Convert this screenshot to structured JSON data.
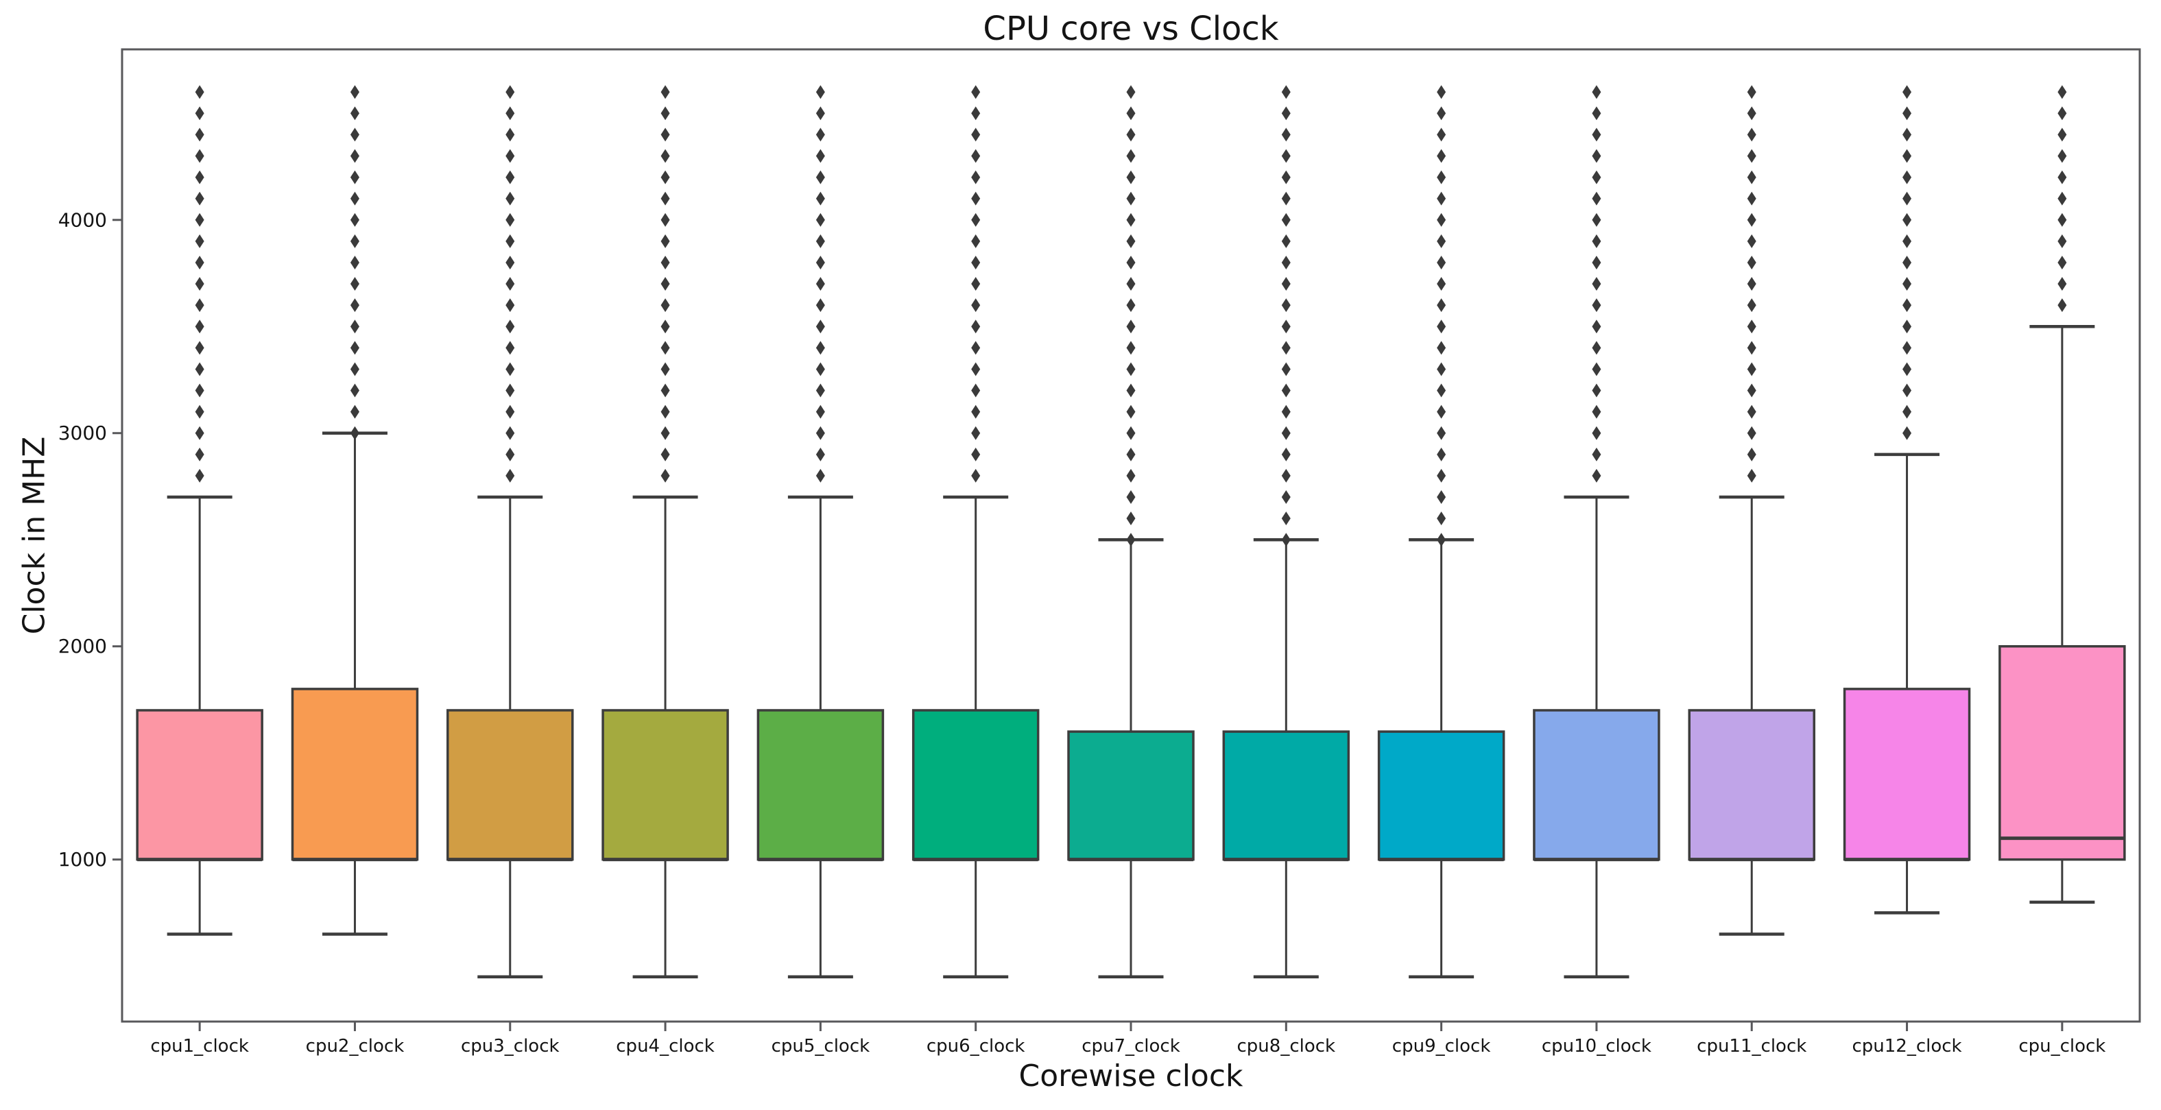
{
  "chart_data": {
    "type": "box",
    "title": "CPU core vs Clock",
    "xlabel": "Corewise clock",
    "ylabel": "Clock in MHZ",
    "categories": [
      "cpu1_clock",
      "cpu2_clock",
      "cpu3_clock",
      "cpu4_clock",
      "cpu5_clock",
      "cpu6_clock",
      "cpu7_clock",
      "cpu8_clock",
      "cpu9_clock",
      "cpu10_clock",
      "cpu11_clock",
      "cpu12_clock",
      "cpu_clock"
    ],
    "yticks": [
      1000,
      2000,
      3000,
      4000
    ],
    "ylim": [
      240,
      4800
    ],
    "grid": false,
    "legend": "none",
    "units": "MHz",
    "colors": {
      "background": "#ffffff",
      "spine": "#58585b",
      "box_line": "#3d3d3d",
      "flier": "#3a3a3a",
      "text": "#141414"
    },
    "boxes": [
      {
        "label": "cpu1_clock",
        "color": "#fc96a4",
        "whisker_low": 650,
        "q1": 1000,
        "median": 1000,
        "q3": 1700,
        "whisker_high": 2700,
        "outliers": [
          2800,
          2900,
          3000,
          3100,
          3200,
          3300,
          3400,
          3500,
          3600,
          3700,
          3800,
          3900,
          4000,
          4100,
          4200,
          4300,
          4400,
          4500,
          4600
        ]
      },
      {
        "label": "cpu2_clock",
        "color": "#f89b51",
        "whisker_low": 650,
        "q1": 1000,
        "median": 1000,
        "q3": 1800,
        "whisker_high": 3000,
        "outliers": [
          3000,
          3100,
          3200,
          3300,
          3400,
          3500,
          3600,
          3700,
          3800,
          3900,
          4000,
          4100,
          4200,
          4300,
          4400,
          4500,
          4600
        ]
      },
      {
        "label": "cpu3_clock",
        "color": "#d19d44",
        "whisker_low": 450,
        "q1": 1000,
        "median": 1000,
        "q3": 1700,
        "whisker_high": 2700,
        "outliers": [
          2800,
          2900,
          3000,
          3100,
          3200,
          3300,
          3400,
          3500,
          3600,
          3700,
          3800,
          3900,
          4000,
          4100,
          4200,
          4300,
          4400,
          4500,
          4600
        ]
      },
      {
        "label": "cpu4_clock",
        "color": "#a4aa3f",
        "whisker_low": 450,
        "q1": 1000,
        "median": 1000,
        "q3": 1700,
        "whisker_high": 2700,
        "outliers": [
          2800,
          2900,
          3000,
          3100,
          3200,
          3300,
          3400,
          3500,
          3600,
          3700,
          3800,
          3900,
          4000,
          4100,
          4200,
          4300,
          4400,
          4500,
          4600
        ]
      },
      {
        "label": "cpu5_clock",
        "color": "#5cae47",
        "whisker_low": 450,
        "q1": 1000,
        "median": 1000,
        "q3": 1700,
        "whisker_high": 2700,
        "outliers": [
          2800,
          2900,
          3000,
          3100,
          3200,
          3300,
          3400,
          3500,
          3600,
          3700,
          3800,
          3900,
          4000,
          4100,
          4200,
          4300,
          4400,
          4500,
          4600
        ]
      },
      {
        "label": "cpu6_clock",
        "color": "#00ae7d",
        "whisker_low": 450,
        "q1": 1000,
        "median": 1000,
        "q3": 1700,
        "whisker_high": 2700,
        "outliers": [
          2800,
          2900,
          3000,
          3100,
          3200,
          3300,
          3400,
          3500,
          3600,
          3700,
          3800,
          3900,
          4000,
          4100,
          4200,
          4300,
          4400,
          4500,
          4600
        ]
      },
      {
        "label": "cpu7_clock",
        "color": "#0cac90",
        "whisker_low": 450,
        "q1": 1000,
        "median": 1000,
        "q3": 1600,
        "whisker_high": 2500,
        "outliers": [
          2500,
          2600,
          2700,
          2800,
          2900,
          3000,
          3100,
          3200,
          3300,
          3400,
          3500,
          3600,
          3700,
          3800,
          3900,
          4000,
          4100,
          4200,
          4300,
          4400,
          4500,
          4600
        ]
      },
      {
        "label": "cpu8_clock",
        "color": "#00aaa6",
        "whisker_low": 450,
        "q1": 1000,
        "median": 1000,
        "q3": 1600,
        "whisker_high": 2500,
        "outliers": [
          2500,
          2600,
          2700,
          2800,
          2900,
          3000,
          3100,
          3200,
          3300,
          3400,
          3500,
          3600,
          3700,
          3800,
          3900,
          4000,
          4100,
          4200,
          4300,
          4400,
          4500,
          4600
        ]
      },
      {
        "label": "cpu9_clock",
        "color": "#00a9c8",
        "whisker_low": 450,
        "q1": 1000,
        "median": 1000,
        "q3": 1600,
        "whisker_high": 2500,
        "outliers": [
          2500,
          2600,
          2700,
          2800,
          2900,
          3000,
          3100,
          3200,
          3300,
          3400,
          3500,
          3600,
          3700,
          3800,
          3900,
          4000,
          4100,
          4200,
          4300,
          4400,
          4500,
          4600
        ]
      },
      {
        "label": "cpu10_clock",
        "color": "#86a9eb",
        "whisker_low": 450,
        "q1": 1000,
        "median": 1000,
        "q3": 1700,
        "whisker_high": 2700,
        "outliers": [
          2800,
          2900,
          3000,
          3100,
          3200,
          3300,
          3400,
          3500,
          3600,
          3700,
          3800,
          3900,
          4000,
          4100,
          4200,
          4300,
          4400,
          4500,
          4600
        ]
      },
      {
        "label": "cpu11_clock",
        "color": "#c0a4e8",
        "whisker_low": 650,
        "q1": 1000,
        "median": 1000,
        "q3": 1700,
        "whisker_high": 2700,
        "outliers": [
          2800,
          2900,
          3000,
          3100,
          3200,
          3300,
          3400,
          3500,
          3600,
          3700,
          3800,
          3900,
          4000,
          4100,
          4200,
          4300,
          4400,
          4500,
          4600
        ]
      },
      {
        "label": "cpu12_clock",
        "color": "#f685e8",
        "whisker_low": 750,
        "q1": 1000,
        "median": 1000,
        "q3": 1800,
        "whisker_high": 2900,
        "outliers": [
          3000,
          3100,
          3200,
          3300,
          3400,
          3500,
          3600,
          3700,
          3800,
          3900,
          4000,
          4100,
          4200,
          4300,
          4400,
          4500,
          4600
        ]
      },
      {
        "label": "cpu_clock",
        "color": "#fc92c5",
        "whisker_low": 800,
        "q1": 1000,
        "median": 1100,
        "q3": 2000,
        "whisker_high": 3500,
        "outliers": [
          3600,
          3700,
          3800,
          3900,
          4000,
          4100,
          4200,
          4300,
          4400,
          4500,
          4600
        ]
      }
    ]
  }
}
